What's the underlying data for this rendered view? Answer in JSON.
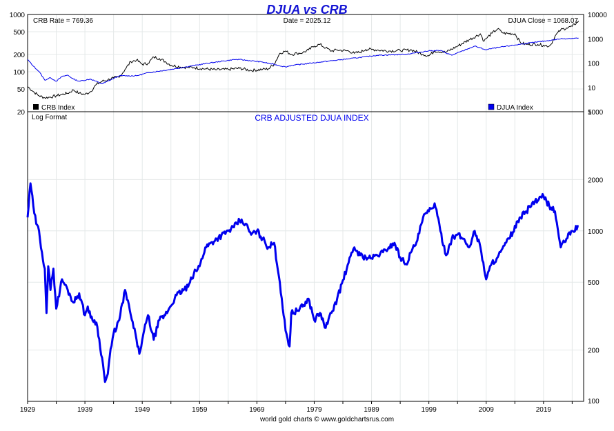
{
  "title": "DJUA vs CRB",
  "footer": "world gold charts © www.goldchartsrus.com",
  "colors": {
    "crb": "#000000",
    "djua": "#0000ee",
    "ratio": "#0000ee",
    "title": "#1414d4",
    "grid": "#e4e8e8"
  },
  "top_panel": {
    "crb_rate": "CRB Rate = 769.36",
    "date": "Date = 2025.12",
    "djua_close": "DJUA Close = 1068.07",
    "legend_crb": "CRB Index",
    "legend_djua": "DJUA Index",
    "left_ticks": [
      "1000",
      "500",
      "200",
      "100",
      "50",
      "20"
    ],
    "right_ticks": [
      "10000",
      "1000",
      "100",
      "10",
      "1"
    ]
  },
  "bottom_panel": {
    "note": "Log Format",
    "title": "CRB ADJUSTED DJUA INDEX",
    "right_ticks": [
      "5000",
      "2000",
      "1000",
      "500",
      "200",
      "100"
    ]
  },
  "x_ticks": [
    "1929",
    "1939",
    "1949",
    "1959",
    "1969",
    "1979",
    "1989",
    "1999",
    "2009",
    "2019"
  ],
  "chart_data": [
    {
      "type": "line",
      "series": [
        {
          "name": "CRB Index",
          "axis": "left",
          "scale": "log",
          "ylim": [
            20,
            1000
          ],
          "x": [
            1929,
            1930,
            1931,
            1932,
            1933,
            1934,
            1935,
            1936,
            1937,
            1938,
            1939,
            1940,
            1941,
            1942,
            1943,
            1944,
            1945,
            1946,
            1947,
            1948,
            1949,
            1950,
            1951,
            1952,
            1953,
            1954,
            1956,
            1958,
            1960,
            1962,
            1964,
            1966,
            1968,
            1970,
            1971,
            1972,
            1973,
            1974,
            1975,
            1976,
            1977,
            1978,
            1979,
            1980,
            1981,
            1982,
            1983,
            1985,
            1986,
            1987,
            1988,
            1989,
            1990,
            1992,
            1994,
            1996,
            1998,
            1999,
            2000,
            2002,
            2004,
            2006,
            2008,
            2008.6,
            2009,
            2010,
            2011,
            2012,
            2014,
            2015,
            2016,
            2018,
            2019,
            2020,
            2020.3,
            2021,
            2022,
            2023,
            2024,
            2025.12
          ],
          "values": [
            55,
            45,
            38,
            35,
            36,
            38,
            40,
            42,
            48,
            42,
            40,
            45,
            60,
            68,
            72,
            78,
            80,
            110,
            150,
            160,
            135,
            140,
            180,
            170,
            150,
            130,
            120,
            118,
            112,
            108,
            110,
            115,
            105,
            110,
            112,
            135,
            210,
            230,
            200,
            210,
            215,
            240,
            280,
            300,
            260,
            230,
            240,
            230,
            210,
            220,
            245,
            245,
            240,
            230,
            235,
            240,
            200,
            190,
            230,
            220,
            280,
            360,
            460,
            340,
            380,
            470,
            560,
            470,
            460,
            320,
            300,
            300,
            290,
            280,
            300,
            420,
            540,
            580,
            620,
            769
          ]
        },
        {
          "name": "DJUA Index",
          "axis": "right",
          "scale": "log",
          "ylim": [
            1,
            10000
          ],
          "x": [
            1929,
            1930,
            1931,
            1932,
            1933,
            1934,
            1935,
            1936,
            1937,
            1938,
            1940,
            1942,
            1945,
            1948,
            1950,
            1955,
            1960,
            1965,
            1966,
            1970,
            1974,
            1975,
            1980,
            1985,
            1990,
            1995,
            1999,
            2001,
            2003,
            2007,
            2009,
            2010,
            2015,
            2020,
            2022,
            2025.12
          ],
          "values": [
            140,
            75,
            45,
            20,
            25,
            18,
            28,
            32,
            22,
            18,
            22,
            14,
            30,
            30,
            40,
            60,
            95,
            140,
            140,
            110,
            70,
            80,
            110,
            150,
            210,
            230,
            320,
            330,
            210,
            500,
            350,
            400,
            600,
            850,
            1000,
            1068
          ]
        }
      ],
      "legend": "bottom-left / bottom-right",
      "grid": true
    },
    {
      "type": "line",
      "title": "CRB ADJUSTED DJUA INDEX",
      "scale": "log",
      "ylim": [
        100,
        5000
      ],
      "x": [
        1929,
        1929.5,
        1930,
        1930.5,
        1931,
        1931.5,
        1932,
        1932.3,
        1932.6,
        1933,
        1933.5,
        1934,
        1935,
        1936,
        1937,
        1938,
        1939,
        1939.5,
        1940,
        1941,
        1942,
        1942.5,
        1943,
        1943.3,
        1944,
        1945,
        1946,
        1947,
        1948,
        1948.5,
        1949,
        1950,
        1951,
        1952,
        1953,
        1955,
        1957,
        1958,
        1959,
        1960,
        1962,
        1964,
        1965,
        1966,
        1967,
        1968,
        1969,
        1970,
        1971,
        1972,
        1973,
        1974,
        1974.7,
        1975,
        1976,
        1977,
        1978,
        1979,
        1980,
        1981,
        1982,
        1983,
        1985,
        1986,
        1987,
        1988,
        1989,
        1990,
        1991,
        1992,
        1993,
        1994,
        1995,
        1996,
        1997,
        1998,
        1999,
        2000,
        2001,
        2002,
        2003,
        2004,
        2005,
        2006,
        2007,
        2008,
        2009,
        2010,
        2011,
        2013,
        2015,
        2016,
        2017,
        2018,
        2019,
        2020,
        2021,
        2022,
        2023,
        2024,
        2025.12
      ],
      "values": [
        1200,
        1900,
        1400,
        1100,
        1000,
        750,
        600,
        330,
        620,
        450,
        600,
        350,
        520,
        450,
        380,
        430,
        320,
        360,
        310,
        290,
        180,
        130,
        145,
        180,
        250,
        300,
        450,
        320,
        230,
        190,
        230,
        320,
        230,
        300,
        320,
        420,
        470,
        560,
        620,
        800,
        900,
        1000,
        1050,
        1150,
        1100,
        950,
        1000,
        900,
        800,
        850,
        500,
        260,
        210,
        330,
        340,
        360,
        400,
        300,
        330,
        270,
        330,
        400,
        650,
        800,
        720,
        700,
        690,
        720,
        750,
        800,
        850,
        700,
        640,
        760,
        880,
        1200,
        1300,
        1450,
        1000,
        720,
        900,
        950,
        900,
        800,
        1000,
        800,
        520,
        650,
        700,
        900,
        1200,
        1300,
        1450,
        1500,
        1600,
        1400,
        1300,
        800,
        900,
        1000,
        1068
      ]
    }
  ]
}
